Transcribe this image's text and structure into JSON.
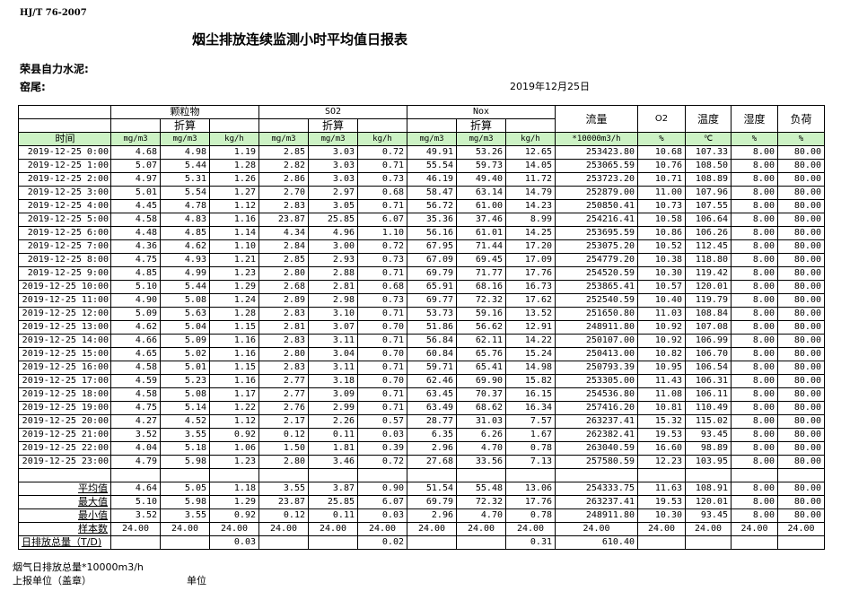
{
  "header": {
    "standard": "HJ/T  76-2007",
    "title": "烟尘排放连续监测小时平均值日报表",
    "company": "荣县自力水泥:",
    "unit": "窑尾:",
    "date": "2019年12月25日"
  },
  "table": {
    "groups": [
      "颗粒物",
      "SO2",
      "Nox"
    ],
    "converted_label": "折算",
    "flow": "流量",
    "o2": "O2",
    "temp": "温度",
    "humidity": "湿度",
    "load": "负荷",
    "units": [
      "时间",
      "mg/m3",
      "mg/m3",
      "kg/h",
      "mg/m3",
      "mg/m3",
      "kg/h",
      "mg/m3",
      "mg/m3",
      "kg/h",
      "*10000m3/h",
      "%",
      "℃",
      "%",
      "%"
    ],
    "rows": [
      [
        "2019-12-25 0:00",
        "4.68",
        "4.98",
        "1.19",
        "2.85",
        "3.03",
        "0.72",
        "49.91",
        "53.26",
        "12.65",
        "253423.80",
        "10.68",
        "107.33",
        "8.00",
        "80.00"
      ],
      [
        "2019-12-25 1:00",
        "5.07",
        "5.44",
        "1.28",
        "2.82",
        "3.03",
        "0.71",
        "55.54",
        "59.73",
        "14.05",
        "253065.59",
        "10.76",
        "108.50",
        "8.00",
        "80.00"
      ],
      [
        "2019-12-25 2:00",
        "4.97",
        "5.31",
        "1.26",
        "2.86",
        "3.03",
        "0.73",
        "46.19",
        "49.40",
        "11.72",
        "253723.20",
        "10.71",
        "108.89",
        "8.00",
        "80.00"
      ],
      [
        "2019-12-25 3:00",
        "5.01",
        "5.54",
        "1.27",
        "2.70",
        "2.97",
        "0.68",
        "58.47",
        "63.14",
        "14.79",
        "252879.00",
        "11.00",
        "107.96",
        "8.00",
        "80.00"
      ],
      [
        "2019-12-25 4:00",
        "4.45",
        "4.78",
        "1.12",
        "2.83",
        "3.05",
        "0.71",
        "56.72",
        "61.00",
        "14.23",
        "250850.41",
        "10.73",
        "107.55",
        "8.00",
        "80.00"
      ],
      [
        "2019-12-25 5:00",
        "4.58",
        "4.83",
        "1.16",
        "23.87",
        "25.85",
        "6.07",
        "35.36",
        "37.46",
        "8.99",
        "254216.41",
        "10.58",
        "106.64",
        "8.00",
        "80.00"
      ],
      [
        "2019-12-25 6:00",
        "4.48",
        "4.85",
        "1.14",
        "4.34",
        "4.96",
        "1.10",
        "56.16",
        "61.01",
        "14.25",
        "253695.59",
        "10.86",
        "106.26",
        "8.00",
        "80.00"
      ],
      [
        "2019-12-25 7:00",
        "4.36",
        "4.62",
        "1.10",
        "2.84",
        "3.00",
        "0.72",
        "67.95",
        "71.44",
        "17.20",
        "253075.20",
        "10.52",
        "112.45",
        "8.00",
        "80.00"
      ],
      [
        "2019-12-25 8:00",
        "4.75",
        "4.93",
        "1.21",
        "2.85",
        "2.93",
        "0.73",
        "67.09",
        "69.45",
        "17.09",
        "254779.20",
        "10.38",
        "118.80",
        "8.00",
        "80.00"
      ],
      [
        "2019-12-25 9:00",
        "4.85",
        "4.99",
        "1.23",
        "2.80",
        "2.88",
        "0.71",
        "69.79",
        "71.77",
        "17.76",
        "254520.59",
        "10.30",
        "119.42",
        "8.00",
        "80.00"
      ],
      [
        "2019-12-25 10:00",
        "5.10",
        "5.44",
        "1.29",
        "2.68",
        "2.81",
        "0.68",
        "65.91",
        "68.16",
        "16.73",
        "253865.41",
        "10.57",
        "120.01",
        "8.00",
        "80.00"
      ],
      [
        "2019-12-25 11:00",
        "4.90",
        "5.08",
        "1.24",
        "2.89",
        "2.98",
        "0.73",
        "69.77",
        "72.32",
        "17.62",
        "252540.59",
        "10.40",
        "119.79",
        "8.00",
        "80.00"
      ],
      [
        "2019-12-25 12:00",
        "5.09",
        "5.63",
        "1.28",
        "2.83",
        "3.10",
        "0.71",
        "53.73",
        "59.16",
        "13.52",
        "251650.80",
        "11.03",
        "108.84",
        "8.00",
        "80.00"
      ],
      [
        "2019-12-25 13:00",
        "4.62",
        "5.04",
        "1.15",
        "2.81",
        "3.07",
        "0.70",
        "51.86",
        "56.62",
        "12.91",
        "248911.80",
        "10.92",
        "107.08",
        "8.00",
        "80.00"
      ],
      [
        "2019-12-25 14:00",
        "4.66",
        "5.09",
        "1.16",
        "2.83",
        "3.11",
        "0.71",
        "56.84",
        "62.11",
        "14.22",
        "250107.00",
        "10.92",
        "106.99",
        "8.00",
        "80.00"
      ],
      [
        "2019-12-25 15:00",
        "4.65",
        "5.02",
        "1.16",
        "2.80",
        "3.04",
        "0.70",
        "60.84",
        "65.76",
        "15.24",
        "250413.00",
        "10.82",
        "106.70",
        "8.00",
        "80.00"
      ],
      [
        "2019-12-25 16:00",
        "4.58",
        "5.01",
        "1.15",
        "2.83",
        "3.11",
        "0.71",
        "59.71",
        "65.41",
        "14.98",
        "250793.39",
        "10.95",
        "106.54",
        "8.00",
        "80.00"
      ],
      [
        "2019-12-25 17:00",
        "4.59",
        "5.23",
        "1.16",
        "2.77",
        "3.18",
        "0.70",
        "62.46",
        "69.90",
        "15.82",
        "253305.00",
        "11.43",
        "106.31",
        "8.00",
        "80.00"
      ],
      [
        "2019-12-25 18:00",
        "4.58",
        "5.08",
        "1.17",
        "2.77",
        "3.09",
        "0.71",
        "63.45",
        "70.37",
        "16.15",
        "254536.80",
        "11.08",
        "106.11",
        "8.00",
        "80.00"
      ],
      [
        "2019-12-25 19:00",
        "4.75",
        "5.14",
        "1.22",
        "2.76",
        "2.99",
        "0.71",
        "63.49",
        "68.62",
        "16.34",
        "257416.20",
        "10.81",
        "110.49",
        "8.00",
        "80.00"
      ],
      [
        "2019-12-25 20:00",
        "4.27",
        "4.52",
        "1.12",
        "2.17",
        "2.26",
        "0.57",
        "28.77",
        "31.03",
        "7.57",
        "263237.41",
        "15.32",
        "115.02",
        "8.00",
        "80.00"
      ],
      [
        "2019-12-25 21:00",
        "3.52",
        "3.55",
        "0.92",
        "0.12",
        "0.11",
        "0.03",
        "6.35",
        "6.26",
        "1.67",
        "262382.41",
        "19.53",
        "93.45",
        "8.00",
        "80.00"
      ],
      [
        "2019-12-25 22:00",
        "4.04",
        "5.18",
        "1.06",
        "1.50",
        "1.81",
        "0.39",
        "2.96",
        "4.70",
        "0.78",
        "263040.59",
        "16.60",
        "98.89",
        "8.00",
        "80.00"
      ],
      [
        "2019-12-25 23:00",
        "4.79",
        "5.98",
        "1.23",
        "2.80",
        "3.46",
        "0.72",
        "27.68",
        "33.56",
        "7.13",
        "257580.59",
        "12.23",
        "103.95",
        "8.00",
        "80.00"
      ]
    ],
    "stats": [
      [
        "平均值",
        "4.64",
        "5.05",
        "1.18",
        "3.55",
        "3.87",
        "0.90",
        "51.54",
        "55.48",
        "13.06",
        "254333.75",
        "11.63",
        "108.91",
        "8.00",
        "80.00"
      ],
      [
        "最大值",
        "5.10",
        "5.98",
        "1.29",
        "23.87",
        "25.85",
        "6.07",
        "69.79",
        "72.32",
        "17.76",
        "263237.41",
        "19.53",
        "120.01",
        "8.00",
        "80.00"
      ],
      [
        "最小值",
        "3.52",
        "3.55",
        "0.92",
        "0.12",
        "0.11",
        "0.03",
        "2.96",
        "4.70",
        "0.78",
        "248911.80",
        "10.30",
        "93.45",
        "8.00",
        "80.00"
      ],
      [
        "样本数",
        "24.00",
        "24.00",
        "24.00",
        "24.00",
        "24.00",
        "24.00",
        "24.00",
        "24.00",
        "24.00",
        "24.00",
        "24.00",
        "24.00",
        "24.00",
        "24.00"
      ]
    ],
    "daily_total": [
      "日排放总量（T/D)",
      "",
      "",
      "0.03",
      "",
      "",
      "0.02",
      "",
      "",
      "0.31",
      "610.40",
      "",
      "",
      "",
      ""
    ]
  },
  "footer": {
    "flue_gas_total": "烟气日排放总量*10000m3/h",
    "reporting_unit": "上报单位（盖章）",
    "unit_label": "单位"
  }
}
